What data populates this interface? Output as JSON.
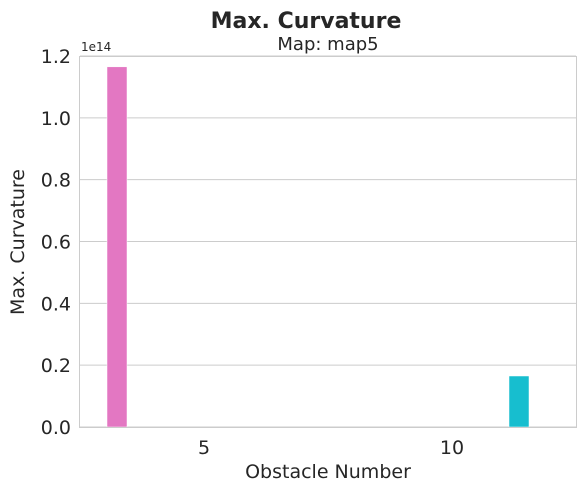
{
  "chart_data": {
    "type": "bar",
    "title": "Max. Curvature",
    "subtitle": "Map: map5",
    "xlabel": "Obstacle Number",
    "ylabel": "Max. Curvature",
    "y_offset_label": "1e14",
    "y_scale": 100000000000000.0,
    "categories": [
      "5",
      "10"
    ],
    "series": [
      {
        "color": "#e377c2",
        "values": [
          1.165,
          0
        ]
      },
      {
        "color": "#17becf",
        "values": [
          0,
          0.165
        ]
      }
    ],
    "ylim": [
      0,
      1.2
    ],
    "yticks": [
      "0.0",
      "0.2",
      "0.4",
      "0.6",
      "0.8",
      "1.0",
      "1.2"
    ],
    "grid": true,
    "legend": "none"
  }
}
